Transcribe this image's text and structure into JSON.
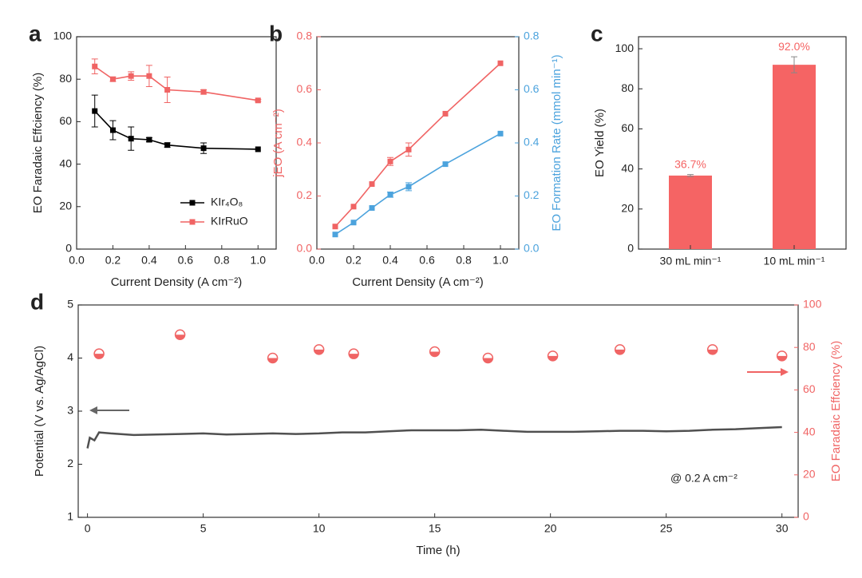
{
  "chart_data": [
    {
      "type": "line",
      "panel": "a",
      "x_label": "Current Density (A cm⁻²)",
      "y_label": "EO Faradaic Effciency (%)",
      "x": [
        0.1,
        0.2,
        0.3,
        0.4,
        0.5,
        0.7,
        1.0
      ],
      "series": [
        {
          "name": "KIr₄O₈",
          "color": "#000000",
          "marker": "square",
          "values": [
            65,
            56,
            52,
            51.5,
            49,
            47.5,
            47
          ],
          "errors": [
            7.5,
            4.5,
            5.5,
            1,
            1,
            2.5,
            0
          ]
        },
        {
          "name": "KIrRuO",
          "color": "#f06464",
          "marker": "square",
          "values": [
            86,
            80,
            81.5,
            81.5,
            75,
            74,
            70
          ],
          "errors": [
            3.5,
            1,
            2,
            5,
            6,
            1,
            0.5
          ]
        }
      ],
      "xlim": [
        0,
        1.1
      ],
      "xticks": [
        {
          "value": 0,
          "label": "0.0"
        },
        0.2,
        0.4,
        0.6,
        0.8,
        {
          "value": 1,
          "label": "1.0"
        }
      ],
      "ylim": [
        0,
        100
      ],
      "yticks": [
        0,
        20,
        40,
        60,
        80,
        100
      ],
      "legend": "lower right"
    },
    {
      "type": "line",
      "panel": "b",
      "x_label": "Current Density (A cm⁻²)",
      "y_label": "jEO (A cm⁻²)",
      "y2_label": "EO Formation Rate (mmol min⁻¹)",
      "y_axis_color": "#f06464",
      "y2_axis_color": "#4ca3dd",
      "x": [
        0.1,
        0.2,
        0.3,
        0.4,
        0.5,
        0.7,
        1.0
      ],
      "series": [
        {
          "color": "#f06464",
          "marker": "square",
          "values": [
            0.085,
            0.16,
            0.245,
            0.33,
            0.375,
            0.51,
            0.7
          ],
          "errors": [
            0,
            0,
            0,
            0.015,
            0.025,
            0,
            0
          ]
        },
        {
          "color": "#4ca3dd",
          "marker": "square",
          "axis": "y2",
          "values": [
            0.055,
            0.1,
            0.155,
            0.205,
            0.235,
            0.32,
            0.435
          ],
          "errors": [
            0,
            0,
            0,
            0.01,
            0.015,
            0,
            0
          ]
        }
      ],
      "xlim": [
        0,
        1.1
      ],
      "xticks": [
        {
          "value": 0,
          "label": "0.0"
        },
        0.2,
        0.4,
        0.6,
        0.8,
        {
          "value": 1,
          "label": "1.0"
        }
      ],
      "ylim": [
        0,
        0.8
      ],
      "yticks": [
        {
          "value": 0,
          "label": "0.0"
        },
        0.2,
        0.4,
        0.6,
        0.8
      ],
      "y2lim": [
        0,
        0.8
      ],
      "y2ticks": [
        {
          "value": 0,
          "label": "0.0"
        },
        0.2,
        0.4,
        0.6,
        0.8
      ]
    },
    {
      "type": "bar",
      "panel": "c",
      "y_label": "EO Yield (%)",
      "categories": [
        "30 mL min⁻¹",
        "10 mL min⁻¹"
      ],
      "values": [
        36.7,
        92.0
      ],
      "errors": [
        0.5,
        4
      ],
      "value_labels": [
        "36.7%",
        "92.0%"
      ],
      "color": "#f56464",
      "ylim": [
        0,
        106
      ],
      "yticks": [
        0,
        20,
        40,
        60,
        80,
        100
      ]
    },
    {
      "type": "line",
      "panel": "d",
      "x_label": "Time (h)",
      "y_label": "Potential (V vs. Ag/AgCl)",
      "y2_label": "EO Faradaic Effciency (%)",
      "y2_axis_color": "#f06464",
      "annotation": "@ 0.2 A cm⁻²",
      "series": [
        {
          "color": "#505050",
          "marker": "none",
          "x": [
            0,
            0.1,
            0.3,
            0.5,
            1,
            2,
            3,
            4,
            5,
            6,
            7,
            8,
            9,
            10,
            11,
            12,
            13,
            14,
            15,
            16,
            17,
            18,
            19,
            20,
            21,
            22,
            23,
            24,
            25,
            26,
            27,
            28,
            29,
            30
          ],
          "values": [
            2.3,
            2.5,
            2.45,
            2.6,
            2.58,
            2.55,
            2.56,
            2.57,
            2.58,
            2.56,
            2.57,
            2.58,
            2.57,
            2.58,
            2.6,
            2.6,
            2.62,
            2.64,
            2.64,
            2.64,
            2.65,
            2.63,
            2.61,
            2.61,
            2.61,
            2.62,
            2.63,
            2.63,
            2.62,
            2.63,
            2.65,
            2.66,
            2.68,
            2.7
          ]
        },
        {
          "color": "#f06464",
          "marker": "half-circle",
          "axis": "y2",
          "line": false,
          "x": [
            0.5,
            4,
            8,
            10,
            11.5,
            15,
            17.3,
            20.1,
            23,
            27,
            30
          ],
          "values": [
            77,
            86,
            75,
            79,
            77,
            78,
            75,
            76,
            79,
            79,
            76
          ]
        }
      ],
      "xlim": [
        -0.4,
        30.7
      ],
      "xticks": [
        0,
        5,
        10,
        15,
        20,
        25,
        30
      ],
      "ylim": [
        1,
        5
      ],
      "yticks": [
        1,
        2,
        3,
        4,
        5
      ],
      "y2lim": [
        0,
        100
      ],
      "y2ticks": [
        0,
        20,
        40,
        60,
        80,
        100
      ]
    }
  ]
}
